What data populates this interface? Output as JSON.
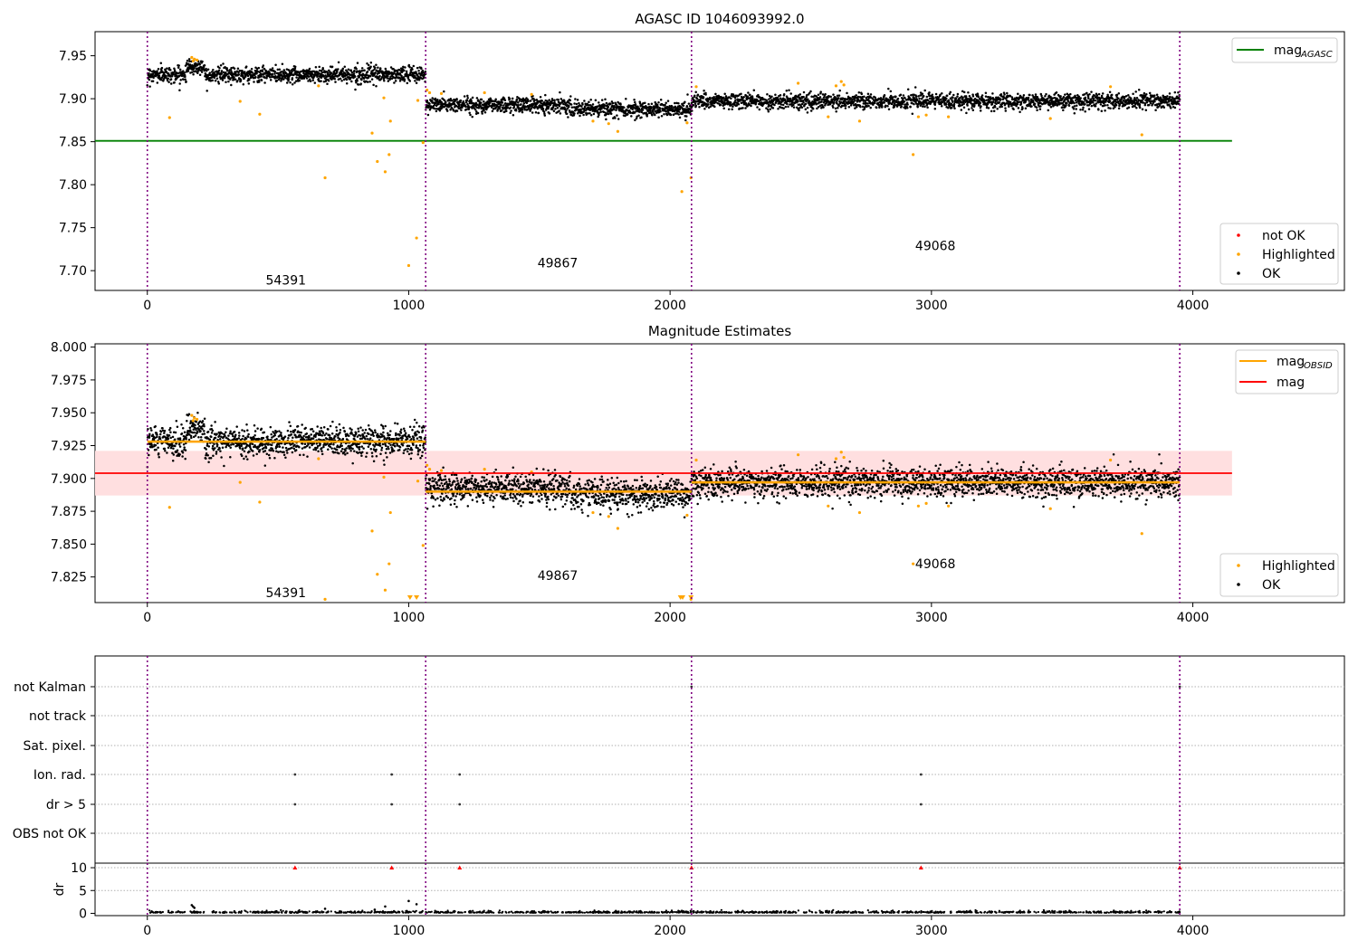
{
  "chart_data": [
    {
      "type": "scatter",
      "title": "AGASC ID 1046093992.0",
      "xlim": [
        -200,
        4580
      ],
      "ylim": [
        7.677,
        7.978
      ],
      "xticks": [
        "0",
        "1000",
        "2000",
        "3000",
        "4000"
      ],
      "yticks": [
        "7.70",
        "7.75",
        "7.80",
        "7.85",
        "7.90",
        "7.95"
      ],
      "obs_boundaries": [
        0,
        1065,
        2082,
        3950
      ],
      "obs_labels": [
        {
          "text": "54391",
          "x": 530,
          "y": 7.689
        },
        {
          "text": "49867",
          "x": 1570,
          "y": 7.709
        },
        {
          "text": "49068",
          "x": 3015,
          "y": 7.729
        }
      ],
      "series": [
        {
          "name": "mag",
          "subscript": "AGASC",
          "kind": "hline",
          "y": 7.851,
          "x_range": [
            -200,
            4150
          ],
          "color": "#008000"
        },
        {
          "name": "not OK",
          "kind": "points",
          "color": "#ff0000"
        },
        {
          "name": "Highlighted",
          "kind": "points",
          "color": "#ffa500"
        },
        {
          "name": "OK",
          "kind": "points",
          "color": "#000000"
        }
      ],
      "ok_segments": [
        {
          "x": [
            0,
            1065
          ],
          "mean": 7.928,
          "spread": 0.006
        },
        {
          "x": [
            1065,
            1620
          ],
          "mean": 7.893,
          "spread": 0.006
        },
        {
          "x": [
            1620,
            2082
          ],
          "mean": 7.888,
          "spread": 0.006
        },
        {
          "x": [
            2082,
            3950
          ],
          "mean": 7.897,
          "spread": 0.006
        }
      ],
      "highlighted_points": [
        [
          85,
          7.878
        ],
        [
          170,
          7.948
        ],
        [
          175,
          7.944
        ],
        [
          180,
          7.946
        ],
        [
          190,
          7.945
        ],
        [
          355,
          7.897
        ],
        [
          430,
          7.882
        ],
        [
          655,
          7.915
        ],
        [
          680,
          7.808
        ],
        [
          860,
          7.86
        ],
        [
          880,
          7.827
        ],
        [
          905,
          7.901
        ],
        [
          910,
          7.815
        ],
        [
          925,
          7.835
        ],
        [
          930,
          7.874
        ],
        [
          1000,
          7.706
        ],
        [
          1030,
          7.738
        ],
        [
          1035,
          7.898
        ],
        [
          1055,
          7.849
        ],
        [
          1070,
          7.91
        ],
        [
          1080,
          7.907
        ],
        [
          1125,
          7.906
        ],
        [
          1290,
          7.907
        ],
        [
          1470,
          7.905
        ],
        [
          1705,
          7.874
        ],
        [
          1765,
          7.871
        ],
        [
          1800,
          7.862
        ],
        [
          2045,
          7.792
        ],
        [
          2065,
          7.872
        ],
        [
          2080,
          7.808
        ],
        [
          2100,
          7.914
        ],
        [
          2490,
          7.918
        ],
        [
          2605,
          7.879
        ],
        [
          2635,
          7.915
        ],
        [
          2655,
          7.92
        ],
        [
          2665,
          7.916
        ],
        [
          2725,
          7.874
        ],
        [
          2930,
          7.835
        ],
        [
          2950,
          7.879
        ],
        [
          2980,
          7.881
        ],
        [
          3065,
          7.879
        ],
        [
          3455,
          7.877
        ],
        [
          3685,
          7.914
        ],
        [
          3805,
          7.858
        ]
      ],
      "legend_upper": "top-right",
      "legend_lower": "bottom-right"
    },
    {
      "type": "scatter",
      "title": "Magnitude Estimates",
      "xlim": [
        -200,
        4580
      ],
      "ylim": [
        7.8055,
        8.0025
      ],
      "xticks": [
        "0",
        "1000",
        "2000",
        "3000",
        "4000"
      ],
      "yticks": [
        "7.825",
        "7.850",
        "7.875",
        "7.900",
        "7.925",
        "7.950",
        "7.975",
        "8.000"
      ],
      "obs_labels": [
        {
          "text": "54391",
          "x": 530,
          "y": 7.813
        },
        {
          "text": "49867",
          "x": 1570,
          "y": 7.826
        },
        {
          "text": "49068",
          "x": 3015,
          "y": 7.835
        }
      ],
      "series": [
        {
          "name": "mag",
          "subscript": "OBSID",
          "kind": "step",
          "color": "#ffa500",
          "segments": [
            [
              0,
              1065,
              7.928
            ],
            [
              1065,
              2082,
              7.89
            ],
            [
              2082,
              3950,
              7.897
            ]
          ]
        },
        {
          "name": "mag",
          "kind": "hline",
          "y": 7.904,
          "x_range": [
            -200,
            4150
          ],
          "color": "#ff0000"
        },
        {
          "name": "Highlighted",
          "kind": "points",
          "color": "#ffa500"
        },
        {
          "name": "OK",
          "kind": "points",
          "color": "#000000"
        }
      ],
      "band": {
        "y_low": 7.887,
        "y_high": 7.921,
        "x_range": [
          -200,
          4150
        ],
        "color": "#ffdfe0"
      },
      "clipped_low_markers": [
        1005,
        1030,
        2040,
        2048,
        2080
      ],
      "legend_upper": "top-right",
      "legend_lower": "bottom-right"
    },
    {
      "type": "scatter",
      "title": "",
      "xlim": [
        -200,
        4580
      ],
      "xticks": [
        "0",
        "1000",
        "2000",
        "3000",
        "4000"
      ],
      "flag_rows": [
        "not Kalman",
        "not track",
        "Sat. pixel.",
        "Ion. rad.",
        "dr > 5",
        "OBS not OK"
      ],
      "flag_points": [
        {
          "row": "not Kalman",
          "x": [
            2082,
            3950
          ]
        },
        {
          "row": "Ion. rad.",
          "x": [
            565,
            935,
            1195,
            2960
          ]
        },
        {
          "row": "dr > 5",
          "x": [
            565,
            935,
            1195,
            2960
          ]
        }
      ]
    },
    {
      "type": "scatter",
      "title": "",
      "ylabel": "dr",
      "xlim": [
        -200,
        4580
      ],
      "ylim": [
        -0.5,
        11
      ],
      "yticks": [
        "0",
        "5",
        "10"
      ],
      "xticks": [
        "0",
        "1000",
        "2000",
        "3000",
        "4000"
      ],
      "clipped_markers": [
        565,
        935,
        1195,
        2082,
        2960,
        3950
      ],
      "outlier_points": [
        [
          170,
          1.8
        ],
        [
          175,
          1.5
        ],
        [
          180,
          1.2
        ],
        [
          680,
          1.0
        ],
        [
          870,
          0.8
        ],
        [
          910,
          1.5
        ],
        [
          1000,
          2.7
        ],
        [
          1030,
          2.0
        ]
      ]
    }
  ]
}
